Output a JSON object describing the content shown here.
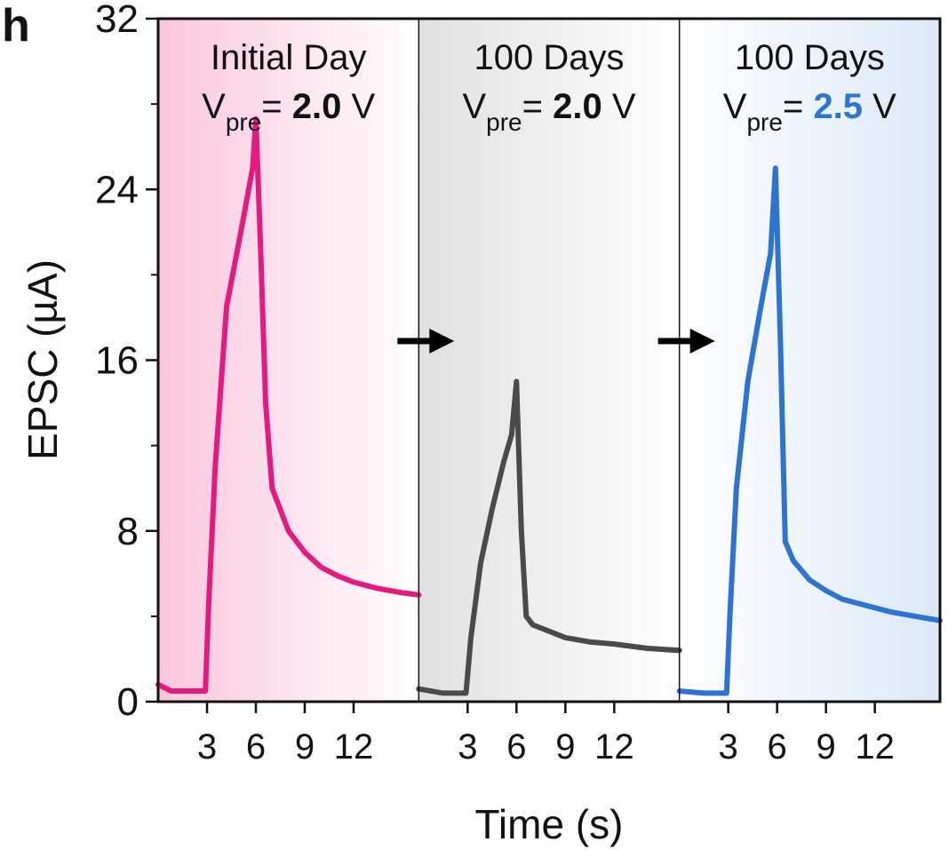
{
  "panel_label": "h",
  "xlabel": "Time (s)",
  "ylabel": "EPSC (µA)",
  "chart_data": {
    "type": "line",
    "ylim": [
      0,
      32
    ],
    "yticks": [
      "0",
      "8",
      "16",
      "24",
      "32"
    ],
    "xlim": [
      0,
      16
    ],
    "xticks": [
      "3",
      "6",
      "9",
      "12"
    ],
    "grid": false,
    "panels": [
      {
        "title_line1": "Initial Day",
        "vpre_label": "V",
        "vpre_sub": "pre",
        "vpre_eq": "= ",
        "vpre_value": "2.0",
        "vpre_unit": " V",
        "value_color": "#111111",
        "line_color": "#e6197f",
        "bg_color": "#f9c6dc",
        "gradient_direction": "left-to-right",
        "series": [
          {
            "x": [
              0,
              0.8,
              2.9,
              3.1,
              3.5,
              4.2,
              5.2,
              5.8,
              6.0,
              6.3,
              6.6,
              7.0,
              8.0,
              9.0,
              10.0,
              11.0,
              12.0,
              13.5,
              15.0,
              16.0
            ],
            "y": [
              0.8,
              0.5,
              0.5,
              4.5,
              11.0,
              18.5,
              22.5,
              25.0,
              27.3,
              21.0,
              14.0,
              10.0,
              8.0,
              7.0,
              6.3,
              5.9,
              5.6,
              5.3,
              5.1,
              5.0
            ]
          }
        ]
      },
      {
        "title_line1": "100 Days",
        "vpre_label": "V",
        "vpre_sub": "pre",
        "vpre_eq": "= ",
        "vpre_value": "2.0",
        "vpre_unit": " V",
        "value_color": "#111111",
        "line_color": "#4a4a4a",
        "bg_color": "#e0e0e0",
        "gradient_direction": "left-to-right",
        "series": [
          {
            "x": [
              0,
              1.5,
              2.9,
              3.2,
              3.8,
              4.5,
              5.2,
              5.7,
              6.0,
              6.3,
              6.6,
              7.0,
              8.0,
              9.0,
              10.5,
              12.0,
              14.0,
              16.0
            ],
            "y": [
              0.6,
              0.4,
              0.4,
              3.0,
              6.5,
              9.0,
              11.2,
              12.5,
              15.0,
              8.0,
              4.0,
              3.6,
              3.3,
              3.0,
              2.8,
              2.7,
              2.5,
              2.4
            ]
          }
        ]
      },
      {
        "title_line1": "100 Days",
        "vpre_label": "V",
        "vpre_sub": "pre",
        "vpre_eq": "= ",
        "vpre_value": "2.5",
        "vpre_unit": " V",
        "value_color": "#2b74d4",
        "line_color": "#2b74d4",
        "bg_color": "#dce8f6",
        "gradient_direction": "right-to-left",
        "series": [
          {
            "x": [
              0,
              1.5,
              2.9,
              3.1,
              3.5,
              4.2,
              5.0,
              5.6,
              5.9,
              6.2,
              6.5,
              7.0,
              8.0,
              9.0,
              10.0,
              11.5,
              13.0,
              14.5,
              16.0
            ],
            "y": [
              0.5,
              0.4,
              0.4,
              4.0,
              10.0,
              15.0,
              18.5,
              21.0,
              25.0,
              17.0,
              7.5,
              6.6,
              5.7,
              5.2,
              4.8,
              4.5,
              4.2,
              4.0,
              3.8
            ]
          }
        ]
      }
    ]
  }
}
